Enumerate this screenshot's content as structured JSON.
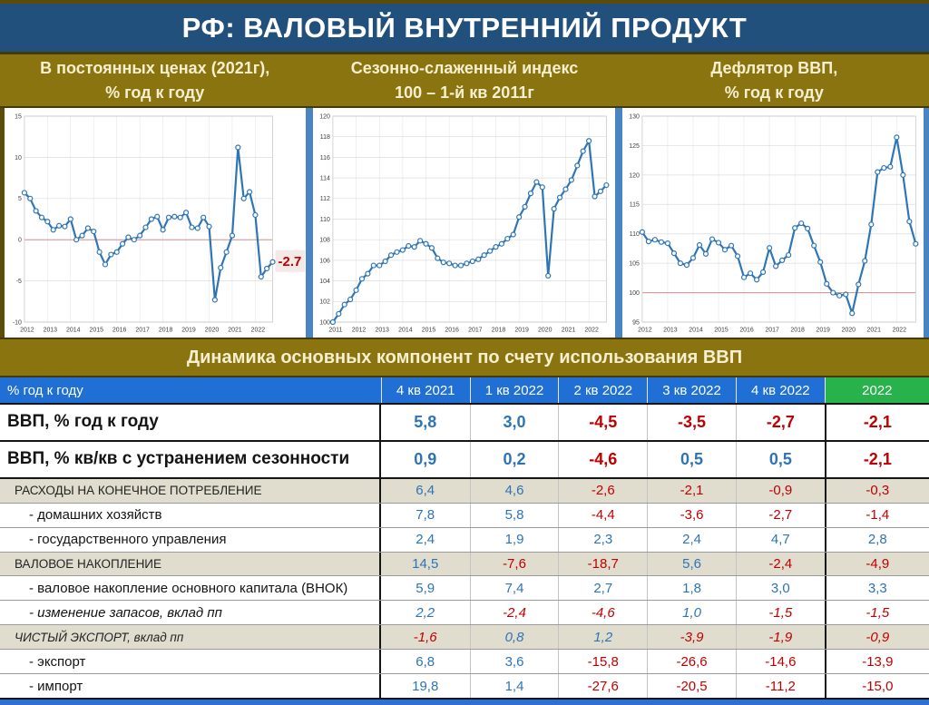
{
  "title": "РФ: ВАЛОВЫЙ ВНУТРЕННИЙ ПРОДУКТ",
  "section_title": "Динамика основных компонент по счету использования ВВП",
  "colors": {
    "title_bar_blue": "#21507c",
    "band_olive": "#8a7410",
    "frame_dark_olive": "#5c4c08",
    "chart_line_blue": "#2e75b6",
    "table_header_blue": "#1f6fd4",
    "table_header_green": "#27b24b",
    "value_positive_blue": "#2e74b5",
    "value_negative_red": "#c00000",
    "section_row_beige": "#e0dcce",
    "panel_gap_blue": "#4a84c4",
    "reference_line_red": "#d98c8c"
  },
  "panels": [
    {
      "line1": "В постоянных ценах (2021г),",
      "line2": "% год к году"
    },
    {
      "line1": "Сезонно-слаженный индекс",
      "line2": "100 – 1-й кв 2011г"
    },
    {
      "line1": "Дефлятор ВВП,",
      "line2": "% год к году"
    }
  ],
  "chart_data": [
    {
      "type": "line",
      "title": "В постоянных ценах (2021г), % год к году",
      "frequency": "quarterly",
      "xlabels": [
        "2012",
        "2013",
        "2014",
        "2015",
        "2016",
        "2017",
        "2018",
        "2019",
        "2020",
        "2021",
        "2022"
      ],
      "ylim": [
        -10,
        15
      ],
      "yticks": [
        -10,
        -5,
        0,
        5,
        10,
        15
      ],
      "ref_line": 0,
      "line_color": "#2e75b6",
      "annotation": {
        "text": "-2.7",
        "value": -2.7
      },
      "values": [
        5.7,
        5.0,
        3.5,
        2.7,
        2.2,
        1.2,
        1.7,
        1.6,
        2.5,
        0.0,
        0.5,
        1.4,
        1.0,
        -1.5,
        -3.0,
        -1.8,
        -1.5,
        -0.5,
        0.3,
        0.0,
        0.5,
        1.5,
        2.5,
        2.8,
        1.2,
        2.7,
        2.8,
        2.7,
        3.3,
        1.5,
        1.4,
        2.7,
        1.6,
        -7.3,
        -3.4,
        -1.5,
        0.5,
        11.2,
        5.0,
        5.8,
        3.0,
        -4.5,
        -3.5,
        -2.7
      ]
    },
    {
      "type": "line",
      "title": "Сезонно-слаженный индекс 100 – 1-й кв 2011г",
      "frequency": "quarterly",
      "xlabels": [
        "2011",
        "2012",
        "2013",
        "2014",
        "2015",
        "2016",
        "2017",
        "2018",
        "2019",
        "2020",
        "2021",
        "2022"
      ],
      "ylim": [
        100,
        120
      ],
      "yticks": [
        100,
        102,
        104,
        106,
        108,
        110,
        112,
        114,
        116,
        118,
        120
      ],
      "ref_line": null,
      "line_color": "#2e75b6",
      "annotation": null,
      "values": [
        100.0,
        100.8,
        101.7,
        102.2,
        103.1,
        104.2,
        104.7,
        105.5,
        105.5,
        105.9,
        106.5,
        106.8,
        107.0,
        107.4,
        107.3,
        107.9,
        107.6,
        107.2,
        106.2,
        105.8,
        105.7,
        105.5,
        105.5,
        105.7,
        105.9,
        106.1,
        106.5,
        106.9,
        107.3,
        107.6,
        108.1,
        108.5,
        110.2,
        111.2,
        112.5,
        113.6,
        113.1,
        104.5,
        111.0,
        112.1,
        112.9,
        113.8,
        115.2,
        116.6,
        117.6,
        112.2,
        112.7,
        113.3
      ]
    },
    {
      "type": "line",
      "title": "Дефлятор ВВП, % год к году",
      "frequency": "quarterly",
      "xlabels": [
        "2012",
        "2013",
        "2014",
        "2015",
        "2016",
        "2017",
        "2018",
        "2019",
        "2020",
        "2021",
        "2022"
      ],
      "ylim": [
        95,
        130
      ],
      "yticks": [
        95,
        100,
        105,
        110,
        115,
        120,
        125,
        130
      ],
      "ref_line": 100,
      "line_color": "#2e75b6",
      "annotation": null,
      "values": [
        110.3,
        108.7,
        109.0,
        108.6,
        108.4,
        106.7,
        105.0,
        104.7,
        105.9,
        108.1,
        106.6,
        109.1,
        108.5,
        107.3,
        108.0,
        106.2,
        102.6,
        103.3,
        102.2,
        103.5,
        107.6,
        104.5,
        105.5,
        106.4,
        111.0,
        111.8,
        110.9,
        108.0,
        105.2,
        101.5,
        100.0,
        99.5,
        99.7,
        96.5,
        101.4,
        105.4,
        111.6,
        120.5,
        121.2,
        121.4,
        126.4,
        120.0,
        112.1,
        108.3
      ]
    }
  ],
  "table": {
    "header": {
      "label": "% год к году",
      "cols": [
        "4 кв 2021",
        "1 кв 2022",
        "2 кв 2022",
        "3 кв 2022",
        "4 кв 2022",
        "2022"
      ]
    },
    "rows": [
      {
        "label": "ВВП, % год к году",
        "style": "main",
        "values": [
          "5,8",
          "3,0",
          "-4,5",
          "-3,5",
          "-2,7",
          "-2,1"
        ]
      },
      {
        "label": "ВВП, % кв/кв с устранением сезонности",
        "style": "main",
        "values": [
          "0,9",
          "0,2",
          "-4,6",
          "0,5",
          "0,5",
          "-2,1"
        ]
      },
      {
        "label": "РАСХОДЫ НА КОНЕЧНОЕ ПОТРЕБЛЕНИЕ",
        "style": "section",
        "values": [
          "6,4",
          "4,6",
          "-2,6",
          "-2,1",
          "-0,9",
          "-0,3"
        ]
      },
      {
        "label": "- домашних хозяйств",
        "style": "sub",
        "values": [
          "7,8",
          "5,8",
          "-4,4",
          "-3,6",
          "-2,7",
          "-1,4"
        ]
      },
      {
        "label": "- государственного управления",
        "style": "sub",
        "values": [
          "2,4",
          "1,9",
          "2,3",
          "2,4",
          "4,7",
          "2,8"
        ]
      },
      {
        "label": "ВАЛОВОЕ НАКОПЛЕНИЕ",
        "style": "section",
        "values": [
          "14,5",
          "-7,6",
          "-18,7",
          "5,6",
          "-2,4",
          "-4,9"
        ]
      },
      {
        "label": "- валовое накопление основного капитала (ВНОК)",
        "style": "sub",
        "values": [
          "5,9",
          "7,4",
          "2,7",
          "1,8",
          "3,0",
          "3,3"
        ]
      },
      {
        "label": "- изменение запасов, вклад пп",
        "style": "sub-italic",
        "values": [
          "2,2",
          "-2,4",
          "-4,6",
          "1,0",
          "-1,5",
          "-1,5"
        ]
      },
      {
        "label": "ЧИСТЫЙ ЭКСПОРТ, вклад пп",
        "style": "section-italic",
        "values": [
          "-1,6",
          "0,8",
          "1,2",
          "-3,9",
          "-1,9",
          "-0,9"
        ]
      },
      {
        "label": "- экспорт",
        "style": "sub",
        "values": [
          "6,8",
          "3,6",
          "-15,8",
          "-26,6",
          "-14,6",
          "-13,9"
        ]
      },
      {
        "label": "- импорт",
        "style": "sub",
        "values": [
          "19,8",
          "1,4",
          "-27,6",
          "-20,5",
          "-11,2",
          "-15,0"
        ]
      }
    ]
  }
}
